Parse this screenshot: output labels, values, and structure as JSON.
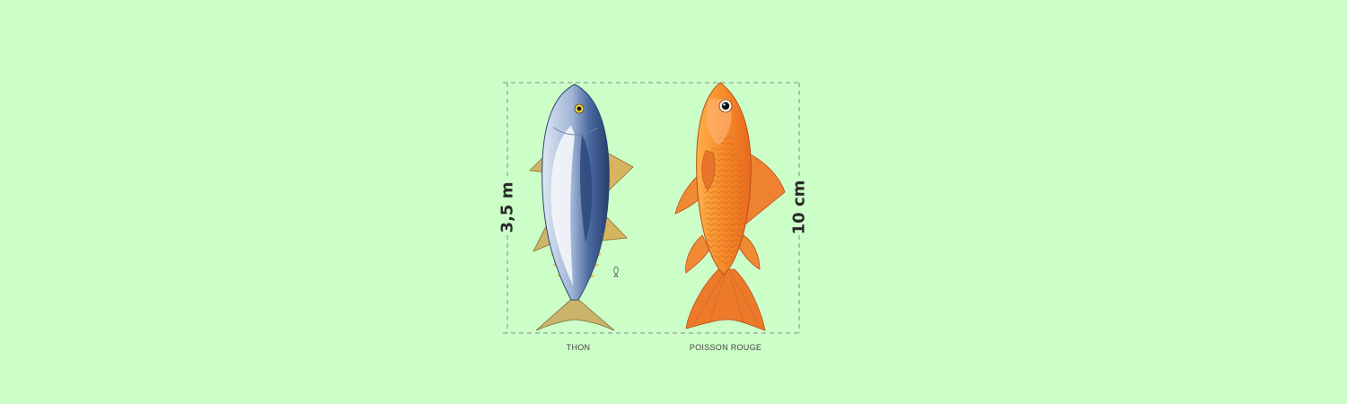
{
  "measurements": {
    "left_height": "3,5 m",
    "right_height": "10 cm"
  },
  "fish": [
    {
      "label": "THON",
      "icon": "tuna-fish-icon",
      "colors": {
        "back": "#3f5c8f",
        "belly": "#f1f4f8",
        "fins": "#c9a85a"
      }
    },
    {
      "label": "POISSON ROUGE",
      "icon": "goldfish-icon",
      "colors": {
        "body": "#f28a2c",
        "fins": "#e5702a",
        "highlight": "#ffc27a"
      }
    }
  ],
  "colors": {
    "background": "#ccffc8",
    "dashed_line": "#8a8a8a",
    "text": "#2a2a2a"
  }
}
